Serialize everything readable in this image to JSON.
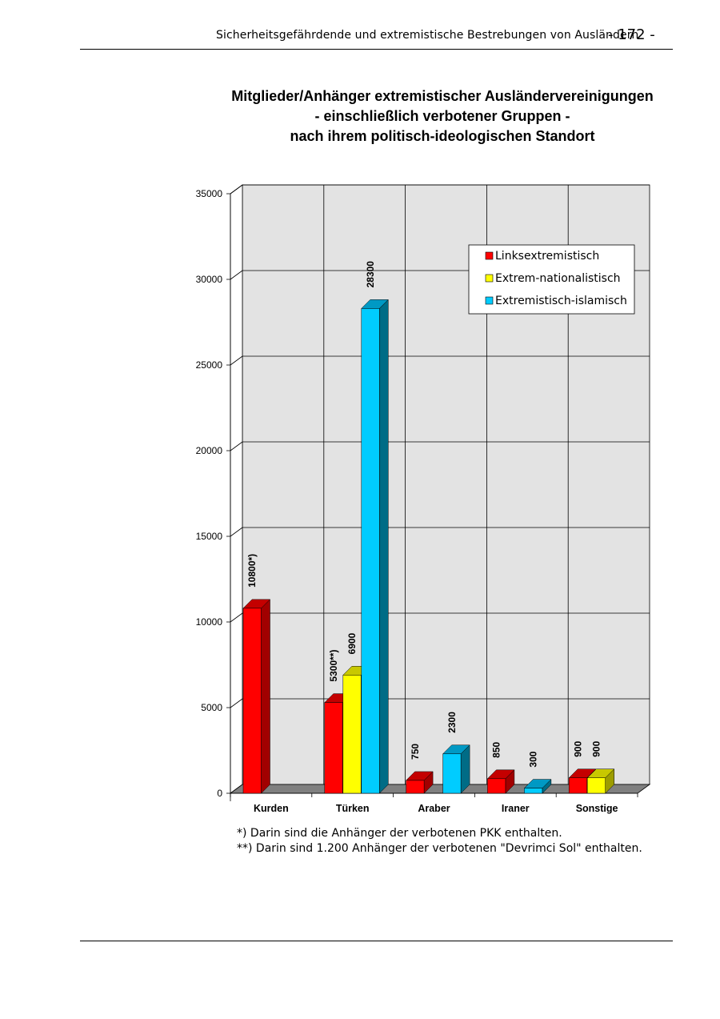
{
  "header": {
    "running_title": "Sicherheitsgefährdende und extremistische Bestrebungen von Ausländern",
    "page_number": "- 172 -"
  },
  "chart_title_lines": [
    "Mitglieder/Anhänger extremistischer Ausländervereinigungen",
    "- einschließlich verbotener Gruppen -",
    "nach ihrem politisch-ideologischen Standort"
  ],
  "footnotes": [
    "*) Darin sind die Anhänger der verbotenen PKK enthalten.",
    "**) Darin sind 1.200 Anhänger der verbotenen \"Devrimci Sol\" enthalten."
  ],
  "chart_data": {
    "type": "bar",
    "style": "3d-grouped",
    "categories": [
      "Kurden",
      "Türken",
      "Araber",
      "Iraner",
      "Sonstige"
    ],
    "series": [
      {
        "name": "Linksextremistisch",
        "color": "#ff0000",
        "side_color": "#a10000",
        "top_color": "#c40000",
        "values": [
          10800,
          5300,
          750,
          850,
          900
        ],
        "labels": [
          "10800*)",
          "5300**)",
          "750",
          "850",
          "900"
        ]
      },
      {
        "name": "Extrem-nationalistisch",
        "color": "#ffff00",
        "side_color": "#9d9d00",
        "top_color": "#c8c800",
        "values": [
          null,
          6900,
          null,
          null,
          900
        ],
        "labels": [
          null,
          "6900",
          null,
          null,
          "900"
        ]
      },
      {
        "name": "Extremistisch-islamisch",
        "color": "#00ccff",
        "side_color": "#006c86",
        "top_color": "#0099c4",
        "values": [
          null,
          28300,
          2300,
          300,
          null
        ],
        "labels": [
          null,
          "28300",
          "2300",
          "300",
          null
        ]
      }
    ],
    "ylim": [
      0,
      35000
    ],
    "yticks": [
      0,
      5000,
      10000,
      15000,
      20000,
      25000,
      30000,
      35000
    ],
    "ytick_labels": [
      "0",
      "5000",
      "10000",
      "15000",
      "20000",
      "25000",
      "30000",
      "35000"
    ],
    "grid": true,
    "legend_position": "top-right",
    "wall_color": "#e3e3e3",
    "floor_color": "#808080"
  }
}
